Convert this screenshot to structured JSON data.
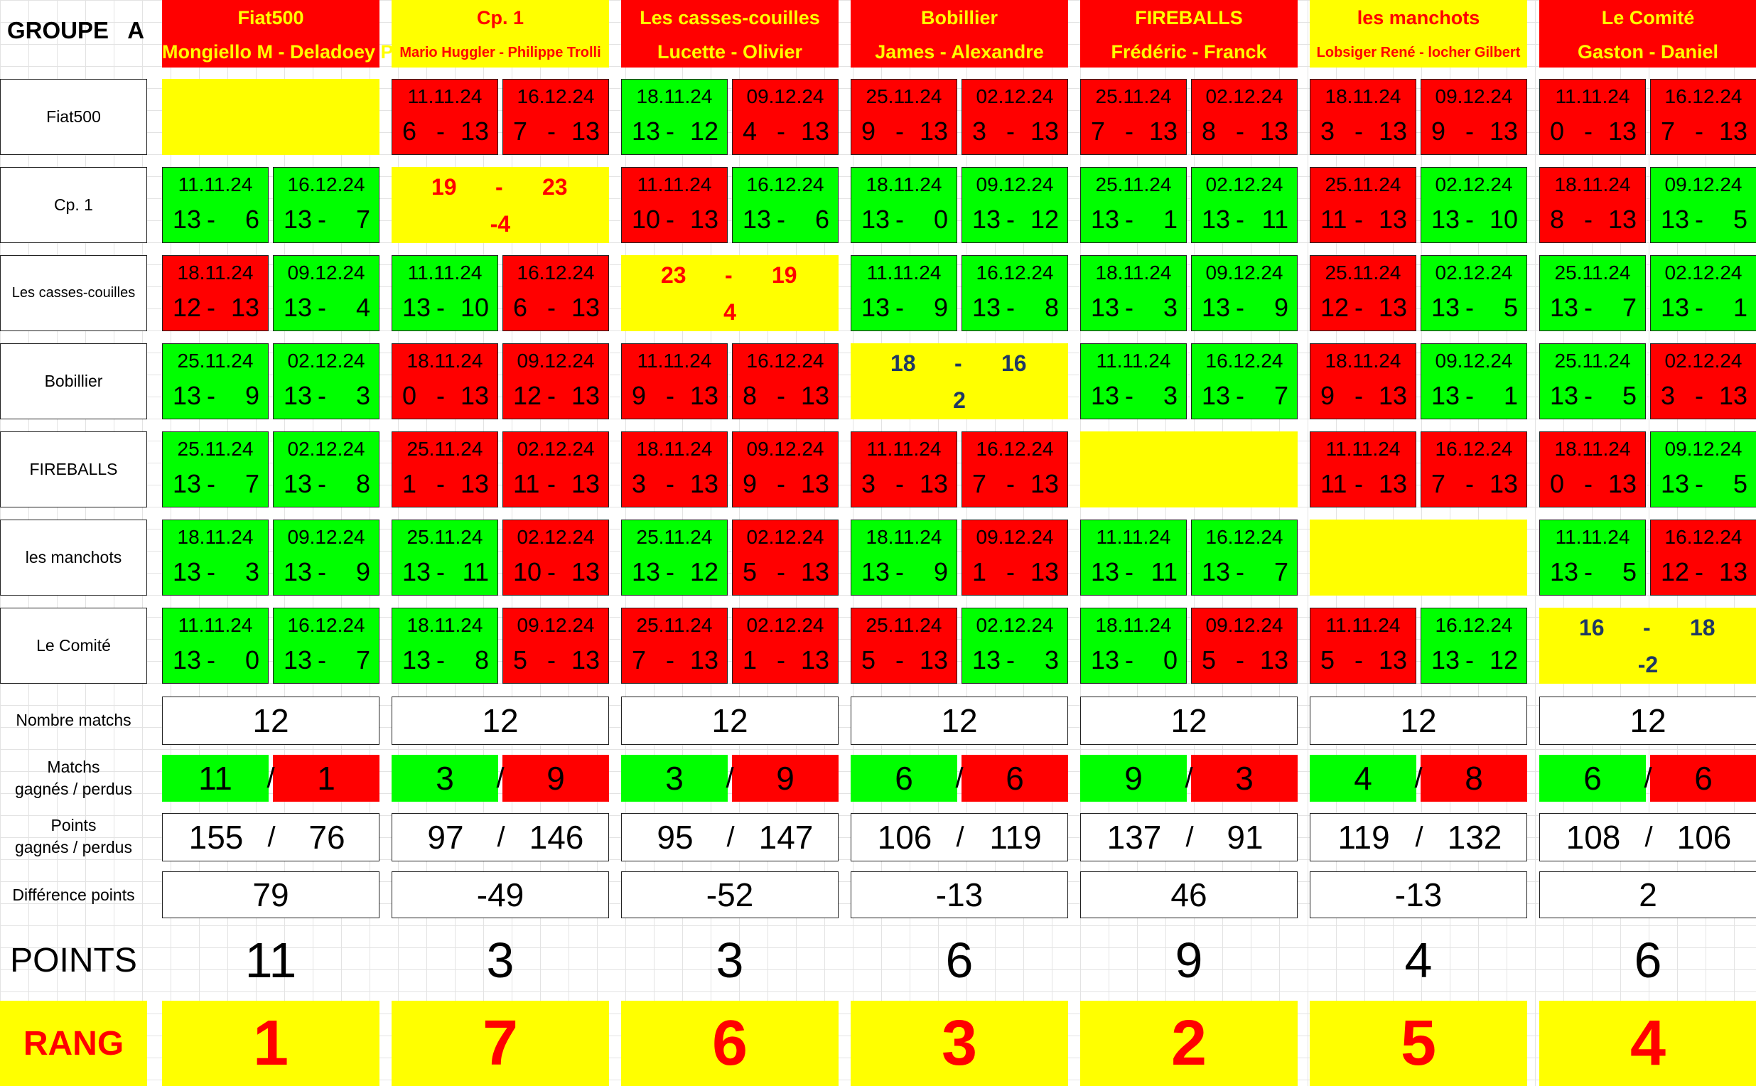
{
  "group_title": "GROUPE   A",
  "teams": [
    {
      "name": "Fiat500",
      "players": "Mongiello M - Deladoey P",
      "players_small": false,
      "header_color": "red"
    },
    {
      "name": "Cp. 1",
      "players": "Mario Huggler - Philippe Trolli",
      "players_small": true,
      "header_color": "yellow"
    },
    {
      "name": "Les casses-couilles",
      "players": "Lucette - Olivier",
      "players_small": false,
      "header_color": "red"
    },
    {
      "name": "Bobillier",
      "players": "James - Alexandre",
      "players_small": false,
      "header_color": "red"
    },
    {
      "name": "FIREBALLS",
      "players": "Frédéric - Franck",
      "players_small": false,
      "header_color": "red"
    },
    {
      "name": "les manchots",
      "players": "Lobsiger René - locher Gilbert",
      "players_small": true,
      "header_color": "yellow"
    },
    {
      "name": "Le Comité",
      "players": "Gaston - Daniel",
      "players_small": false,
      "header_color": "red"
    }
  ],
  "colors": {
    "win": "#00ff00",
    "loss": "#ff0000",
    "highlight": "#ffff00"
  },
  "matrix": [
    [
      {
        "type": "empty"
      },
      {
        "type": "games",
        "games": [
          {
            "date": "11.11.24",
            "a": "6",
            "b": "13",
            "result": "loss"
          },
          {
            "date": "16.12.24",
            "a": "7",
            "b": "13",
            "result": "loss"
          }
        ]
      },
      {
        "type": "games",
        "games": [
          {
            "date": "18.11.24",
            "a": "13",
            "b": "12",
            "result": "win"
          },
          {
            "date": "09.12.24",
            "a": "4",
            "b": "13",
            "result": "loss"
          }
        ]
      },
      {
        "type": "games",
        "games": [
          {
            "date": "25.11.24",
            "a": "9",
            "b": "13",
            "result": "loss"
          },
          {
            "date": "02.12.24",
            "a": "3",
            "b": "13",
            "result": "loss"
          }
        ]
      },
      {
        "type": "games",
        "games": [
          {
            "date": "25.11.24",
            "a": "7",
            "b": "13",
            "result": "loss"
          },
          {
            "date": "02.12.24",
            "a": "8",
            "b": "13",
            "result": "loss"
          }
        ]
      },
      {
        "type": "games",
        "games": [
          {
            "date": "18.11.24",
            "a": "3",
            "b": "13",
            "result": "loss"
          },
          {
            "date": "09.12.24",
            "a": "9",
            "b": "13",
            "result": "loss"
          }
        ]
      },
      {
        "type": "games",
        "games": [
          {
            "date": "11.11.24",
            "a": "0",
            "b": "13",
            "result": "loss"
          },
          {
            "date": "16.12.24",
            "a": "7",
            "b": "13",
            "result": "loss"
          }
        ]
      }
    ],
    [
      {
        "type": "games",
        "games": [
          {
            "date": "11.11.24",
            "a": "13",
            "b": "6",
            "result": "win"
          },
          {
            "date": "16.12.24",
            "a": "13",
            "b": "7",
            "result": "win"
          }
        ]
      },
      {
        "type": "summary",
        "scored": "19",
        "dash": "-",
        "conceded": "23",
        "diff": "-4",
        "text_color": "red"
      },
      {
        "type": "games",
        "games": [
          {
            "date": "11.11.24",
            "a": "10",
            "b": "13",
            "result": "loss"
          },
          {
            "date": "16.12.24",
            "a": "13",
            "b": "6",
            "result": "win"
          }
        ]
      },
      {
        "type": "games",
        "games": [
          {
            "date": "18.11.24",
            "a": "13",
            "b": "0",
            "result": "win"
          },
          {
            "date": "09.12.24",
            "a": "13",
            "b": "12",
            "result": "win"
          }
        ]
      },
      {
        "type": "games",
        "games": [
          {
            "date": "25.11.24",
            "a": "13",
            "b": "1",
            "result": "win"
          },
          {
            "date": "02.12.24",
            "a": "13",
            "b": "11",
            "result": "win"
          }
        ]
      },
      {
        "type": "games",
        "games": [
          {
            "date": "25.11.24",
            "a": "11",
            "b": "13",
            "result": "loss"
          },
          {
            "date": "02.12.24",
            "a": "13",
            "b": "10",
            "result": "win"
          }
        ]
      },
      {
        "type": "games",
        "games": [
          {
            "date": "18.11.24",
            "a": "8",
            "b": "13",
            "result": "loss"
          },
          {
            "date": "09.12.24",
            "a": "13",
            "b": "5",
            "result": "win"
          }
        ]
      }
    ],
    [
      {
        "type": "games",
        "games": [
          {
            "date": "18.11.24",
            "a": "12",
            "b": "13",
            "result": "loss"
          },
          {
            "date": "09.12.24",
            "a": "13",
            "b": "4",
            "result": "win"
          }
        ]
      },
      {
        "type": "games",
        "games": [
          {
            "date": "11.11.24",
            "a": "13",
            "b": "10",
            "result": "win"
          },
          {
            "date": "16.12.24",
            "a": "6",
            "b": "13",
            "result": "loss"
          }
        ]
      },
      {
        "type": "summary",
        "scored": "23",
        "dash": "-",
        "conceded": "19",
        "diff": "4",
        "text_color": "red"
      },
      {
        "type": "games",
        "games": [
          {
            "date": "11.11.24",
            "a": "13",
            "b": "9",
            "result": "win"
          },
          {
            "date": "16.12.24",
            "a": "13",
            "b": "8",
            "result": "win"
          }
        ]
      },
      {
        "type": "games",
        "games": [
          {
            "date": "18.11.24",
            "a": "13",
            "b": "3",
            "result": "win"
          },
          {
            "date": "09.12.24",
            "a": "13",
            "b": "9",
            "result": "win"
          }
        ]
      },
      {
        "type": "games",
        "games": [
          {
            "date": "25.11.24",
            "a": "12",
            "b": "13",
            "result": "loss"
          },
          {
            "date": "02.12.24",
            "a": "13",
            "b": "5",
            "result": "win"
          }
        ]
      },
      {
        "type": "games",
        "games": [
          {
            "date": "25.11.24",
            "a": "13",
            "b": "7",
            "result": "win"
          },
          {
            "date": "02.12.24",
            "a": "13",
            "b": "1",
            "result": "win"
          }
        ]
      }
    ],
    [
      {
        "type": "games",
        "games": [
          {
            "date": "25.11.24",
            "a": "13",
            "b": "9",
            "result": "win"
          },
          {
            "date": "02.12.24",
            "a": "13",
            "b": "3",
            "result": "win"
          }
        ]
      },
      {
        "type": "games",
        "games": [
          {
            "date": "18.11.24",
            "a": "0",
            "b": "13",
            "result": "loss"
          },
          {
            "date": "09.12.24",
            "a": "12",
            "b": "13",
            "result": "loss"
          }
        ]
      },
      {
        "type": "games",
        "games": [
          {
            "date": "11.11.24",
            "a": "9",
            "b": "13",
            "result": "loss"
          },
          {
            "date": "16.12.24",
            "a": "8",
            "b": "13",
            "result": "loss"
          }
        ]
      },
      {
        "type": "summary",
        "scored": "18",
        "dash": "-",
        "conceded": "16",
        "diff": "2",
        "text_color": "blue"
      },
      {
        "type": "games",
        "games": [
          {
            "date": "11.11.24",
            "a": "13",
            "b": "3",
            "result": "win"
          },
          {
            "date": "16.12.24",
            "a": "13",
            "b": "7",
            "result": "win"
          }
        ]
      },
      {
        "type": "games",
        "games": [
          {
            "date": "18.11.24",
            "a": "9",
            "b": "13",
            "result": "loss"
          },
          {
            "date": "09.12.24",
            "a": "13",
            "b": "1",
            "result": "win"
          }
        ]
      },
      {
        "type": "games",
        "games": [
          {
            "date": "25.11.24",
            "a": "13",
            "b": "5",
            "result": "win"
          },
          {
            "date": "02.12.24",
            "a": "3",
            "b": "13",
            "result": "loss"
          }
        ]
      }
    ],
    [
      {
        "type": "games",
        "games": [
          {
            "date": "25.11.24",
            "a": "13",
            "b": "7",
            "result": "win"
          },
          {
            "date": "02.12.24",
            "a": "13",
            "b": "8",
            "result": "win"
          }
        ]
      },
      {
        "type": "games",
        "games": [
          {
            "date": "25.11.24",
            "a": "1",
            "b": "13",
            "result": "loss"
          },
          {
            "date": "02.12.24",
            "a": "11",
            "b": "13",
            "result": "loss"
          }
        ]
      },
      {
        "type": "games",
        "games": [
          {
            "date": "18.11.24",
            "a": "3",
            "b": "13",
            "result": "loss"
          },
          {
            "date": "09.12.24",
            "a": "9",
            "b": "13",
            "result": "loss"
          }
        ]
      },
      {
        "type": "games",
        "games": [
          {
            "date": "11.11.24",
            "a": "3",
            "b": "13",
            "result": "loss"
          },
          {
            "date": "16.12.24",
            "a": "7",
            "b": "13",
            "result": "loss"
          }
        ]
      },
      {
        "type": "empty"
      },
      {
        "type": "games",
        "games": [
          {
            "date": "11.11.24",
            "a": "11",
            "b": "13",
            "result": "loss"
          },
          {
            "date": "16.12.24",
            "a": "7",
            "b": "13",
            "result": "loss"
          }
        ]
      },
      {
        "type": "games",
        "games": [
          {
            "date": "18.11.24",
            "a": "0",
            "b": "13",
            "result": "loss"
          },
          {
            "date": "09.12.24",
            "a": "13",
            "b": "5",
            "result": "win"
          }
        ]
      }
    ],
    [
      {
        "type": "games",
        "games": [
          {
            "date": "18.11.24",
            "a": "13",
            "b": "3",
            "result": "win"
          },
          {
            "date": "09.12.24",
            "a": "13",
            "b": "9",
            "result": "win"
          }
        ]
      },
      {
        "type": "games",
        "games": [
          {
            "date": "25.11.24",
            "a": "13",
            "b": "11",
            "result": "win"
          },
          {
            "date": "02.12.24",
            "a": "10",
            "b": "13",
            "result": "loss"
          }
        ]
      },
      {
        "type": "games",
        "games": [
          {
            "date": "25.11.24",
            "a": "13",
            "b": "12",
            "result": "win"
          },
          {
            "date": "02.12.24",
            "a": "5",
            "b": "13",
            "result": "loss"
          }
        ]
      },
      {
        "type": "games",
        "games": [
          {
            "date": "18.11.24",
            "a": "13",
            "b": "9",
            "result": "win"
          },
          {
            "date": "09.12.24",
            "a": "1",
            "b": "13",
            "result": "loss"
          }
        ]
      },
      {
        "type": "games",
        "games": [
          {
            "date": "11.11.24",
            "a": "13",
            "b": "11",
            "result": "win"
          },
          {
            "date": "16.12.24",
            "a": "13",
            "b": "7",
            "result": "win"
          }
        ]
      },
      {
        "type": "empty"
      },
      {
        "type": "games",
        "games": [
          {
            "date": "11.11.24",
            "a": "13",
            "b": "5",
            "result": "win"
          },
          {
            "date": "16.12.24",
            "a": "12",
            "b": "13",
            "result": "loss"
          }
        ]
      }
    ],
    [
      {
        "type": "games",
        "games": [
          {
            "date": "11.11.24",
            "a": "13",
            "b": "0",
            "result": "win"
          },
          {
            "date": "16.12.24",
            "a": "13",
            "b": "7",
            "result": "win"
          }
        ]
      },
      {
        "type": "games",
        "games": [
          {
            "date": "18.11.24",
            "a": "13",
            "b": "8",
            "result": "win"
          },
          {
            "date": "09.12.24",
            "a": "5",
            "b": "13",
            "result": "loss"
          }
        ]
      },
      {
        "type": "games",
        "games": [
          {
            "date": "25.11.24",
            "a": "7",
            "b": "13",
            "result": "loss"
          },
          {
            "date": "02.12.24",
            "a": "1",
            "b": "13",
            "result": "loss"
          }
        ]
      },
      {
        "type": "games",
        "games": [
          {
            "date": "25.11.24",
            "a": "5",
            "b": "13",
            "result": "loss"
          },
          {
            "date": "02.12.24",
            "a": "13",
            "b": "3",
            "result": "win"
          }
        ]
      },
      {
        "type": "games",
        "games": [
          {
            "date": "18.11.24",
            "a": "13",
            "b": "0",
            "result": "win"
          },
          {
            "date": "09.12.24",
            "a": "5",
            "b": "13",
            "result": "loss"
          }
        ]
      },
      {
        "type": "games",
        "games": [
          {
            "date": "11.11.24",
            "a": "5",
            "b": "13",
            "result": "loss"
          },
          {
            "date": "16.12.24",
            "a": "13",
            "b": "12",
            "result": "win"
          }
        ]
      },
      {
        "type": "summary",
        "scored": "16",
        "dash": "-",
        "conceded": "18",
        "diff": "-2",
        "text_color": "blue"
      }
    ]
  ],
  "stat_labels": {
    "matches": "Nombre matchs",
    "won_lost": "Matchs\ngagnés / perdus",
    "points_won_lost": "Points\ngagnés / perdus",
    "diff": "Différence points",
    "points": "POINTS",
    "rank": "RANG"
  },
  "separator": "/",
  "stats": [
    {
      "matches": "12",
      "won": "11",
      "lost": "1",
      "pts_won": "155",
      "pts_lost": "76",
      "diff": "79",
      "points": "11",
      "rank": "1"
    },
    {
      "matches": "12",
      "won": "3",
      "lost": "9",
      "pts_won": "97",
      "pts_lost": "146",
      "diff": "-49",
      "points": "3",
      "rank": "7"
    },
    {
      "matches": "12",
      "won": "3",
      "lost": "9",
      "pts_won": "95",
      "pts_lost": "147",
      "diff": "-52",
      "points": "3",
      "rank": "6"
    },
    {
      "matches": "12",
      "won": "6",
      "lost": "6",
      "pts_won": "106",
      "pts_lost": "119",
      "diff": "-13",
      "points": "6",
      "rank": "3"
    },
    {
      "matches": "12",
      "won": "9",
      "lost": "3",
      "pts_won": "137",
      "pts_lost": "91",
      "diff": "46",
      "points": "9",
      "rank": "2"
    },
    {
      "matches": "12",
      "won": "4",
      "lost": "8",
      "pts_won": "119",
      "pts_lost": "132",
      "diff": "-13",
      "points": "4",
      "rank": "5"
    },
    {
      "matches": "12",
      "won": "6",
      "lost": "6",
      "pts_won": "108",
      "pts_lost": "106",
      "diff": "2",
      "points": "6",
      "rank": "4"
    }
  ]
}
